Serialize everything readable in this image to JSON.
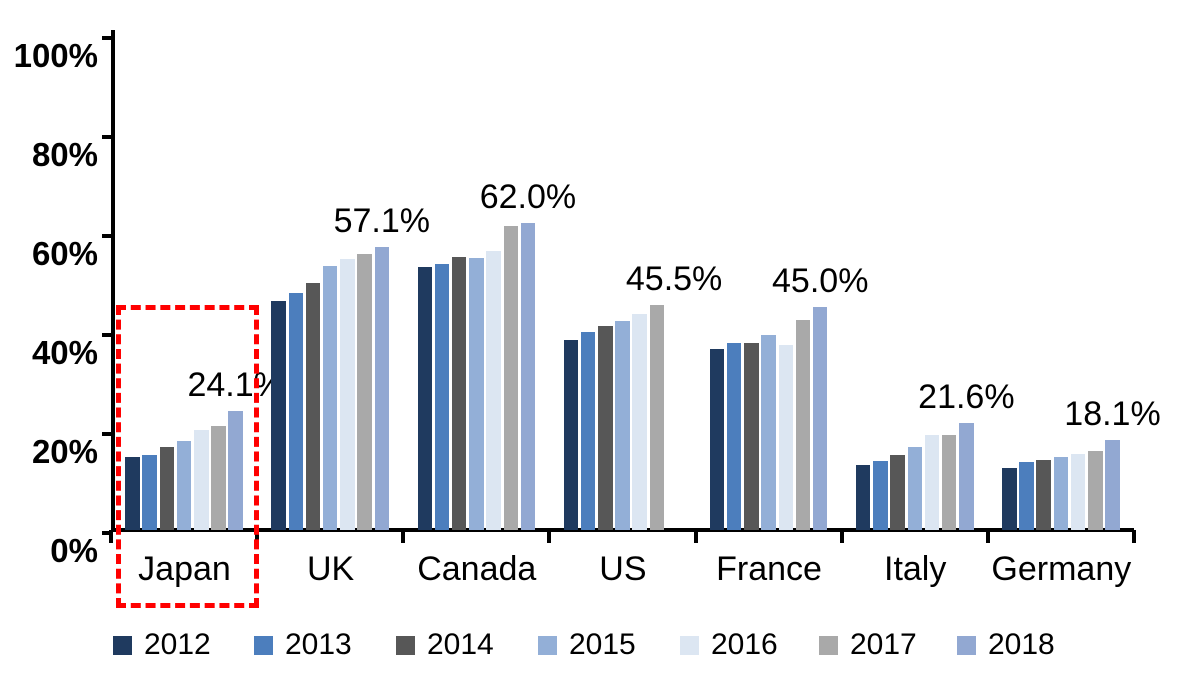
{
  "chart_data": {
    "type": "bar",
    "title": "",
    "xlabel": "",
    "ylabel": "",
    "categories": [
      "Japan",
      "UK",
      "Canada",
      "US",
      "France",
      "Italy",
      "Germany"
    ],
    "series": [
      {
        "name": "2012",
        "color": "#1F3A5F",
        "values": [
          14.8,
          46.3,
          53.2,
          38.3,
          36.5,
          13.2,
          12.5
        ]
      },
      {
        "name": "2013",
        "color": "#4C7EBD",
        "values": [
          15.1,
          47.9,
          53.8,
          40.1,
          37.8,
          14.0,
          13.8
        ]
      },
      {
        "name": "2014",
        "color": "#575757",
        "values": [
          16.8,
          49.9,
          55.2,
          41.2,
          37.7,
          15.2,
          14.2
        ]
      },
      {
        "name": "2015",
        "color": "#93AFD7",
        "values": [
          18.0,
          53.4,
          54.9,
          42.2,
          39.4,
          16.8,
          14.7
        ]
      },
      {
        "name": "2016",
        "color": "#DCE6F2",
        "values": [
          20.2,
          54.7,
          56.4,
          43.7,
          37.4,
          19.2,
          15.3
        ]
      },
      {
        "name": "2017",
        "color": "#A9A9A9",
        "values": [
          21.1,
          55.8,
          61.4,
          45.5,
          42.5,
          19.1,
          15.9
        ]
      },
      {
        "name": "2018",
        "color": "#92A8D2",
        "values": [
          24.1,
          57.1,
          62.0,
          null,
          45.0,
          21.6,
          18.1
        ]
      }
    ],
    "data_labels": [
      "24.1%",
      "57.1%",
      "62.0%",
      "45.5%",
      "45.0%",
      "21.6%",
      "18.1%"
    ],
    "y_axis": {
      "min": 0,
      "max": 100,
      "step": 20,
      "tick_labels": [
        "0%",
        "20%",
        "40%",
        "60%",
        "80%",
        "100%"
      ]
    },
    "grid": false,
    "legend_position": "bottom",
    "legend_entries": [
      "2012",
      "2013",
      "2014",
      "2015",
      "2016",
      "2017",
      "2018"
    ]
  },
  "annotations": {
    "highlight_box": {
      "target_category": "Japan",
      "style": "dashed",
      "color": "#FF0000"
    }
  }
}
